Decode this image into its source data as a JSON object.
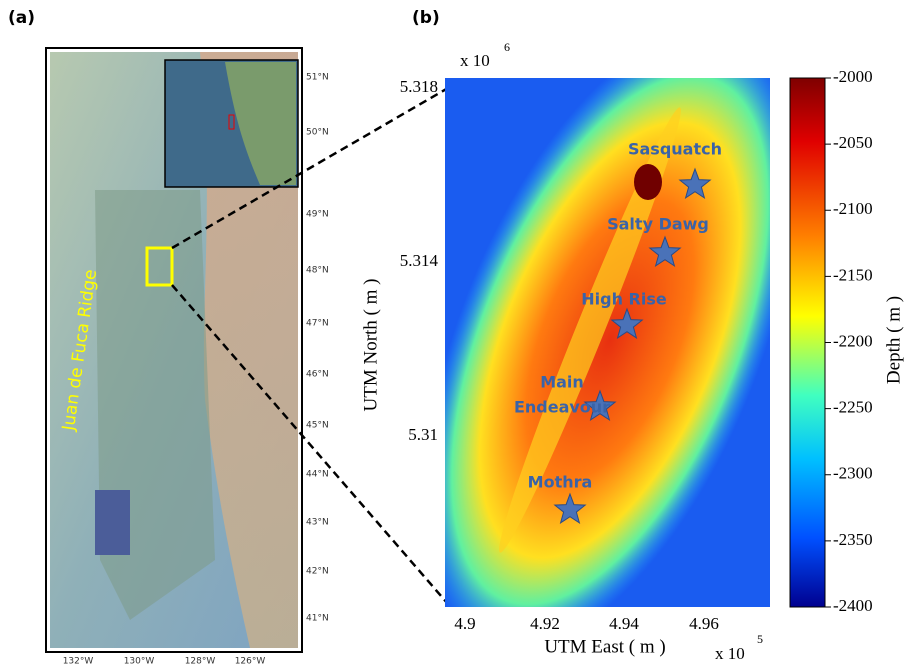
{
  "panel_a": {
    "label": "(a)",
    "ridge_label": "Juan de Fuca Ridge",
    "lat_ticks": [
      "51°N",
      "50°N",
      "49°N",
      "48°N",
      "47°N",
      "46°N",
      "45°N",
      "44°N",
      "43°N",
      "42°N",
      "41°N"
    ],
    "lon_ticks": [
      "132°W",
      "130°W",
      "128°W",
      "126°W"
    ]
  },
  "panel_b": {
    "label": "(b)",
    "x_label": "UTM East ( m )",
    "y_label": "UTM North ( m )",
    "x_multiplier": "x 10",
    "x_exponent": "5",
    "y_multiplier": "x 10",
    "y_exponent": "6",
    "xticks": [
      "4.9",
      "4.92",
      "4.94",
      "4.96"
    ],
    "yticks": [
      "5.318",
      "5.314",
      "5.31"
    ],
    "sites": [
      {
        "name_lines": [
          "Sasquatch"
        ]
      },
      {
        "name_lines": [
          "Salty Dawg"
        ]
      },
      {
        "name_lines": [
          "High Rise"
        ]
      },
      {
        "name_lines": [
          "Main",
          "Endeavour"
        ]
      },
      {
        "name_lines": [
          "Mothra"
        ]
      }
    ],
    "colorbar": {
      "label": "Depth ( m )",
      "ticks": [
        "-2000",
        "-2050",
        "-2100",
        "-2150",
        "-2200",
        "-2250",
        "-2300",
        "-2350",
        "-2400"
      ]
    }
  }
}
